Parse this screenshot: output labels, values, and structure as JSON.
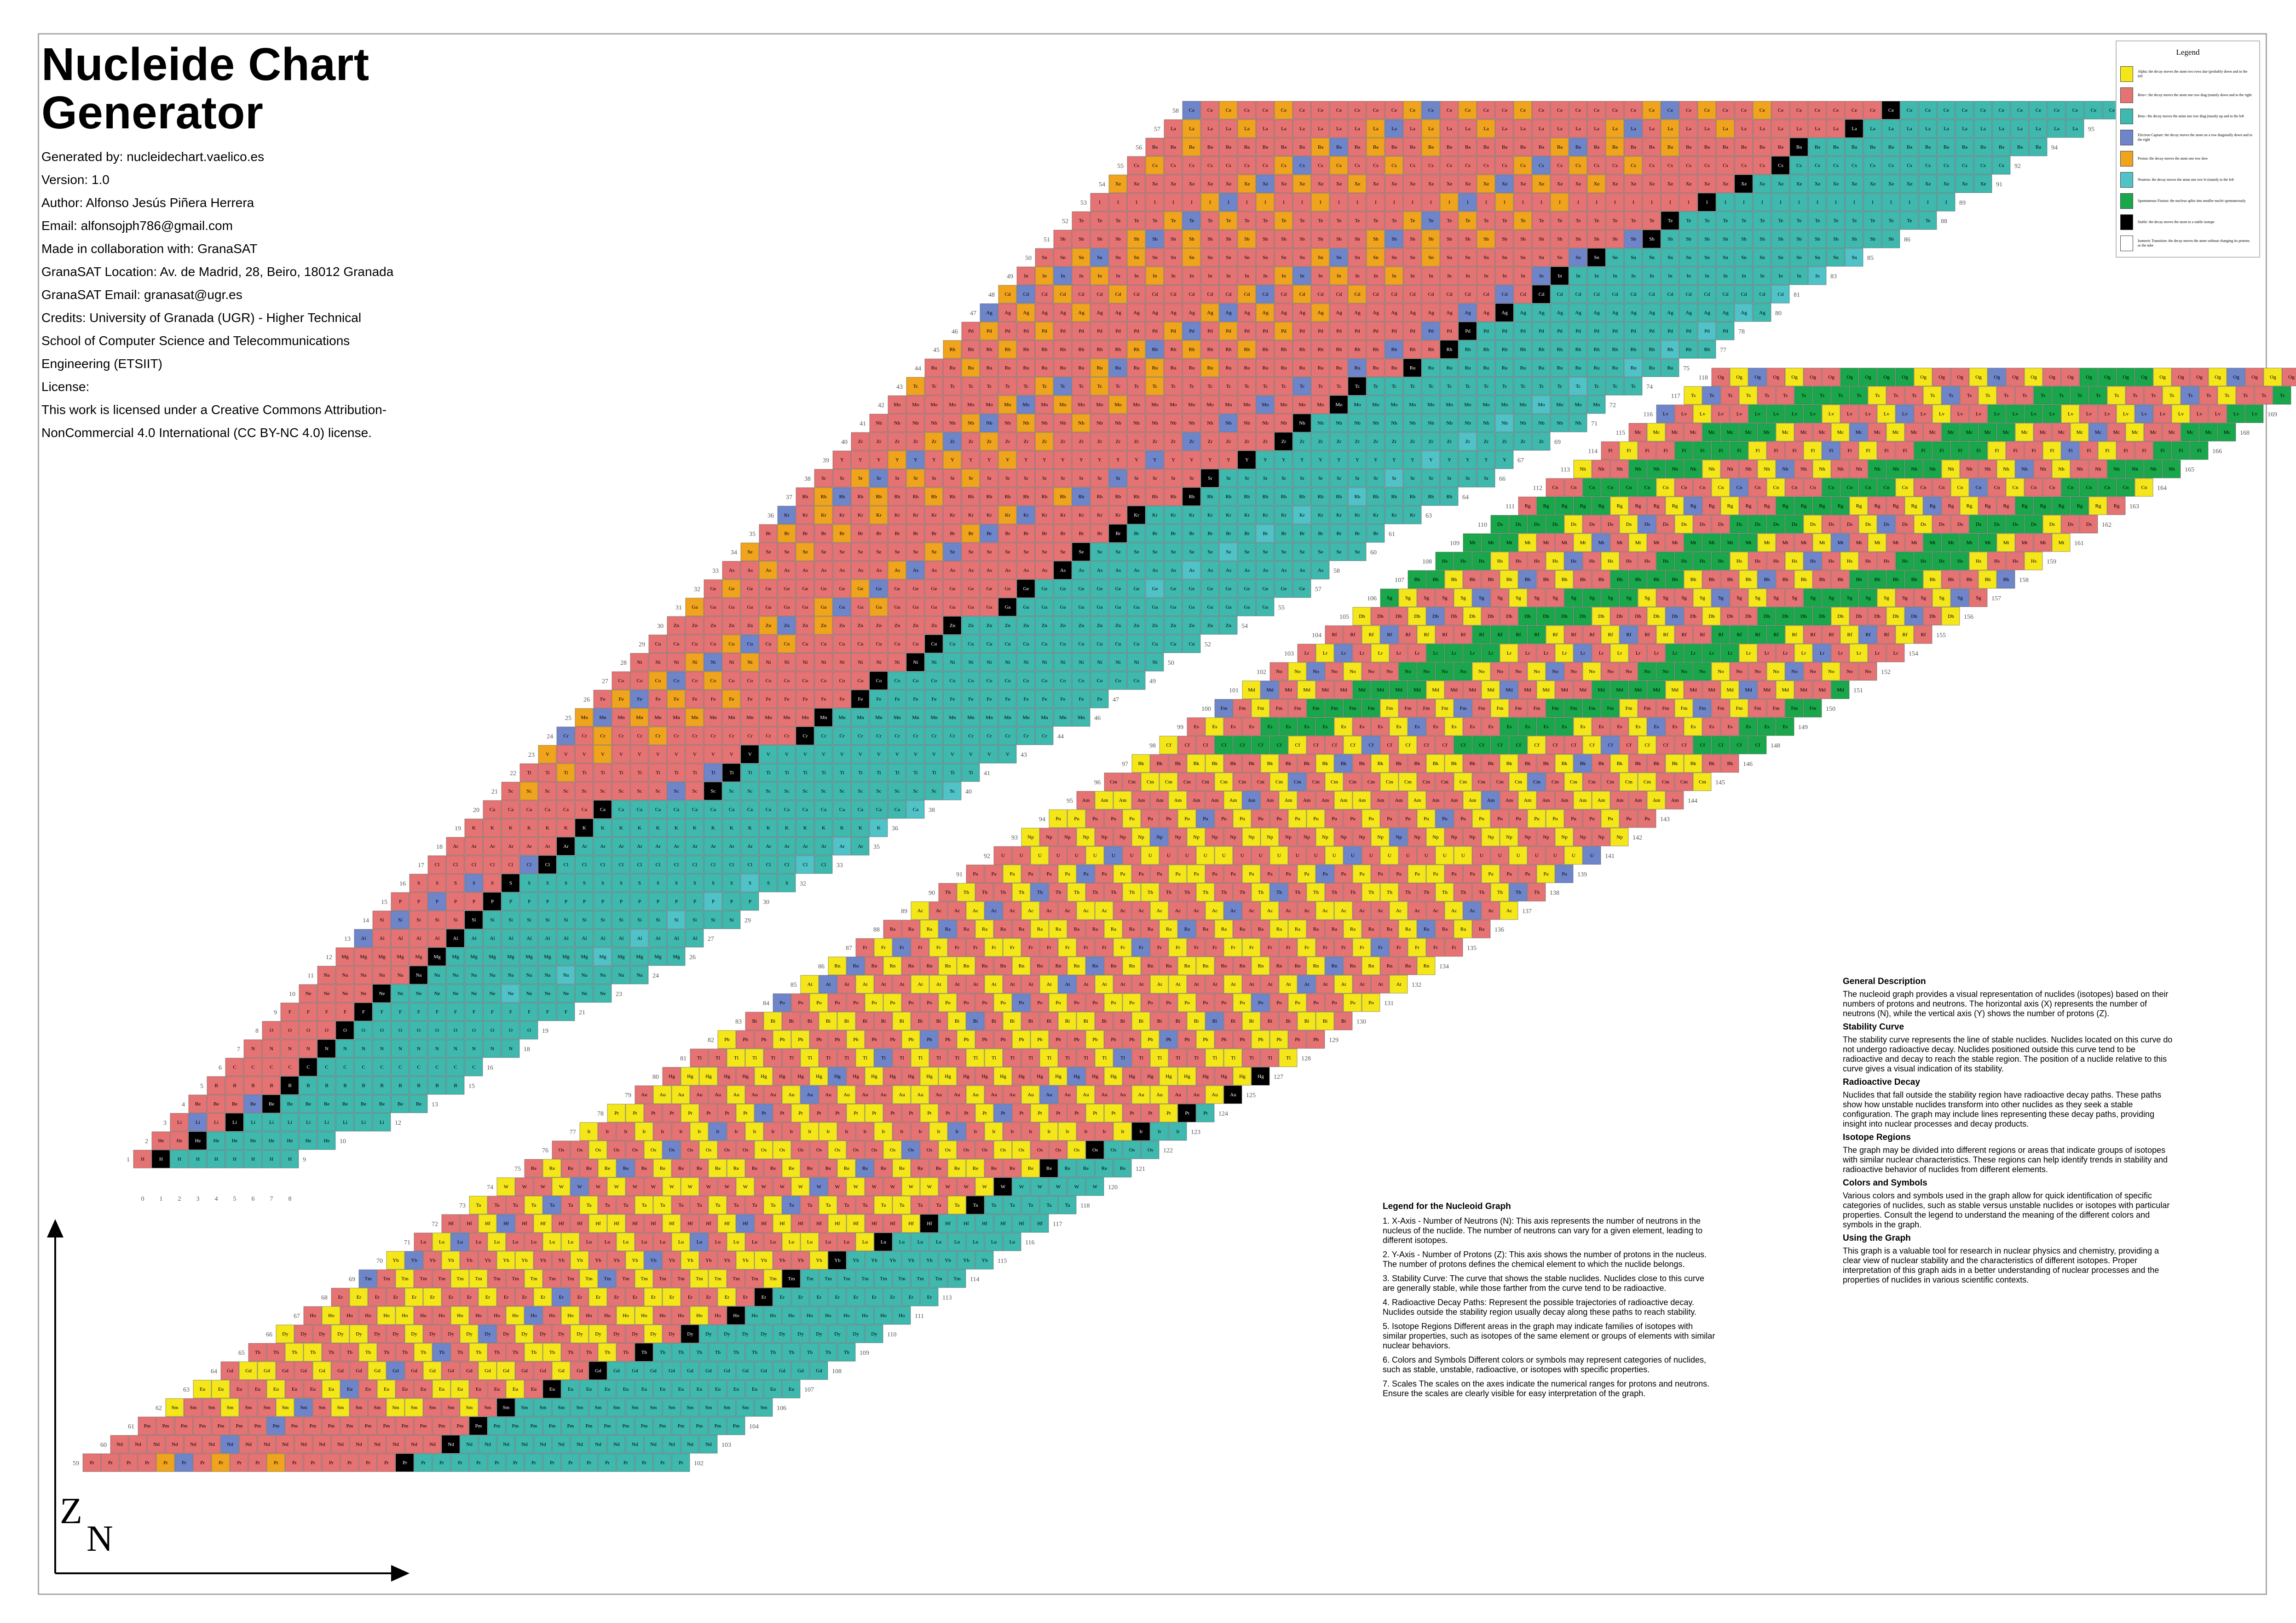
{
  "header": {
    "title": "Nucleide Chart Generator",
    "lines": [
      "Generated by: nucleidechart.vaelico.es",
      "Version: 1.0",
      "Author: Alfonso Jesús Piñera Herrera",
      "Email: alfonsojph786@gmail.com",
      "Made in collaboration with: GranaSAT",
      "GranaSAT Location: Av. de Madrid, 28, Beiro, 18012 Granada",
      "GranaSAT Email: granasat@ugr.es",
      "Credits: University of Granada (UGR) - Higher Technical",
      "School of Computer Science and Telecommunications",
      "Engineering (ETSIIT)",
      "License:",
      "This work is licensed under a Creative Commons Attribution-",
      "NonCommercial 4.0 International (CC BY-NC 4.0) license."
    ]
  },
  "legend": {
    "title": "Legend",
    "items": [
      {
        "color": "#f5e61a",
        "text": "Alpha: the decay moves the atom two rows due (probably down and to the left"
      },
      {
        "color": "#e57373",
        "text": "Beta+: the decay moves the atom one row diag (mainly down and to the right"
      },
      {
        "color": "#3fb8ae",
        "text": "Beta-: the decay moves the atom one row diag (mostly up and to the left"
      },
      {
        "color": "#6f85c9",
        "text": "Electron Capture: the decay moves the atom on a row diagonally down and to the right"
      },
      {
        "color": "#f0a31c",
        "text": "Proton: the decay moves the atom one row dow"
      },
      {
        "color": "#4fc3c7",
        "text": "Neutron: the decay moves the atom one row le (mainly to the left"
      },
      {
        "color": "#1aa64a",
        "text": "Spontaneous Fission: the nucleus splits into smaller nuclei spontaneously"
      },
      {
        "color": "#000000",
        "text": "Stable: the decay moves the atom to a stable isotope"
      },
      {
        "color": "#ffffff",
        "text": "Isomeric Transition: the decay moves the atom without changing its protons or the tube"
      }
    ]
  },
  "general": {
    "sections": [
      {
        "heading": "General Description",
        "text": "The nucleoid graph provides a visual representation of nuclides (isotopes) based on their numbers of protons and neutrons. The horizontal axis (X) represents the number of neutrons (N), while the vertical axis (Y) shows the number of protons (Z)."
      },
      {
        "heading": "Stability Curve",
        "text": "The stability curve represents the line of stable nuclides. Nuclides located on this curve do not undergo radioactive decay. Nuclides positioned outside this curve tend to be radioactive and decay to reach the stable region. The position of a nuclide relative to this curve gives a visual indication of its stability."
      },
      {
        "heading": "Radioactive Decay",
        "text": "Nuclides that fall outside the stability region have radioactive decay paths. These paths show how unstable nuclides transform into other nuclides as they seek a stable configuration. The graph may include lines representing these decay paths, providing insight into nuclear processes and decay products."
      },
      {
        "heading": "Isotope Regions",
        "text": "The graph may be divided into different regions or areas that indicate groups of isotopes with similar nuclear characteristics. These regions can help identify trends in stability and radioactive behavior of nuclides from different elements."
      },
      {
        "heading": "Colors and Symbols",
        "text": "Various colors and symbols used in the graph allow for quick identification of specific categories of nuclides, such as stable versus unstable nuclides or isotopes with particular properties. Consult the legend to understand the meaning of the different colors and symbols in the graph."
      },
      {
        "heading": "Using the Graph",
        "text": "This graph is a valuable tool for research in nuclear physics and chemistry, providing a clear view of nuclear stability and the characteristics of different isotopes. Proper interpretation of this graph aids in a better understanding of nuclear processes and the properties of nuclides in various scientific contexts."
      }
    ]
  },
  "graph_legend": {
    "title": "Legend for the Nucleoid Graph",
    "items": [
      "1. X-Axis - Number of Neutrons (N): This axis represents the number of neutrons in the nucleus of the nuclide. The number of neutrons can vary for a given element, leading to different isotopes.",
      "2. Y-Axis - Number of Protons (Z): This axis shows the number of protons in the nucleus. The number of protons defines the chemical element to which the nuclide belongs.",
      "3. Stability Curve: The curve that shows the stable nuclides. Nuclides close to this curve are generally stable, while those farther from the curve tend to be radioactive.",
      "4. Radioactive Decay Paths: Represent the possible trajectories of radioactive decay. Nuclides outside the stability region usually decay along these paths to reach stability.",
      "5. Isotope Regions Different areas in the graph may indicate families of isotopes with similar properties, such as isotopes of the same element or groups of elements with similar nuclear behaviors.",
      "6. Colors and Symbols Different colors or symbols may represent categories of nuclides, such as stable, unstable, radioactive, or isotopes with specific properties.",
      "7. Scales The scales on the axes indicate the numerical ranges for protons and neutrons. Ensure the scales are clearly visible for easy interpretation of the graph."
    ]
  },
  "axes": {
    "z_label": "Z",
    "n_label": "N"
  },
  "colors": {
    "alpha": "#f5e61a",
    "beta_plus": "#e57373",
    "beta_minus": "#3fb8ae",
    "electron_capture": "#6f85c9",
    "proton": "#f0a31c",
    "neutron": "#4fc3c7",
    "fission": "#1aa64a",
    "stable": "#000000",
    "isomeric": "#ffffff"
  },
  "elements": [
    "n",
    "H",
    "He",
    "Li",
    "Be",
    "B",
    "C",
    "N",
    "O",
    "F",
    "Ne",
    "Na",
    "Mg",
    "Al",
    "Si",
    "P",
    "S",
    "Cl",
    "Ar",
    "K",
    "Ca",
    "Sc",
    "Ti",
    "V",
    "Cr",
    "Mn",
    "Fe",
    "Co",
    "Ni",
    "Cu",
    "Zn",
    "Ga",
    "Ge",
    "As",
    "Se",
    "Br",
    "Kr",
    "Rb",
    "Sr",
    "Y",
    "Zr",
    "Nb",
    "Mo",
    "Tc",
    "Ru",
    "Rh",
    "Pd",
    "Ag",
    "Cd",
    "In",
    "Sn",
    "Sb",
    "Te",
    "I",
    "Xe",
    "Cs",
    "Ba",
    "La",
    "Ce",
    "Pr",
    "Nd",
    "Pm",
    "Sm",
    "Eu",
    "Gd",
    "Tb",
    "Dy",
    "Ho",
    "Er",
    "Tm",
    "Yb",
    "Lu",
    "Hf",
    "Ta",
    "W",
    "Re",
    "Os",
    "Ir",
    "Pt",
    "Au",
    "Hg",
    "Tl",
    "Pb",
    "Bi",
    "Po",
    "At",
    "Rn",
    "Fr",
    "Ra",
    "Ac",
    "Th",
    "Pa",
    "U",
    "Np",
    "Pu",
    "Am",
    "Cm",
    "Bk",
    "Cf",
    "Es",
    "Fm",
    "Md",
    "No",
    "Lr",
    "Rf",
    "Db",
    "Sg",
    "Bh",
    "Hs",
    "Mt",
    "Ds",
    "Rg",
    "Cn",
    "Nh",
    "Fl",
    "Mc",
    "Lv",
    "Ts",
    "Og"
  ],
  "n_axis_ticks": [
    "0",
    "1",
    "2",
    "3",
    "4",
    "5",
    "6",
    "7",
    "8"
  ]
}
